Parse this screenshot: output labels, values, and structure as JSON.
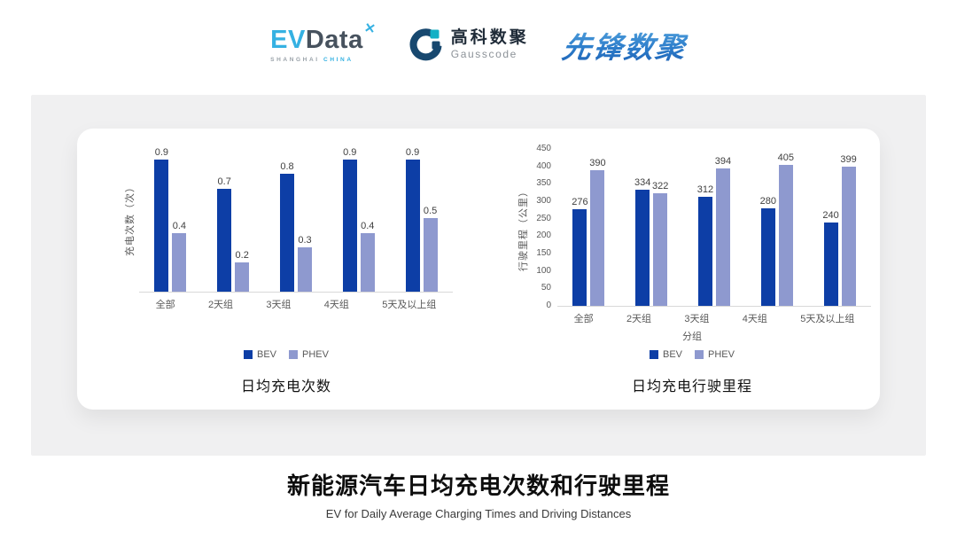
{
  "header": {
    "evdata": {
      "ev": "EV",
      "data": "Data",
      "mark": "✕",
      "sub_left": "SHANGHAI",
      "sub_right": "CHINA"
    },
    "gausscode": {
      "cn": "高科数聚",
      "en": "Gausscode"
    },
    "xianfeng": {
      "text": "先锋数聚"
    }
  },
  "colors": {
    "BEV": "#0d3ea6",
    "PHEV": "#8e99cf",
    "axis_line": "#d8d8d8",
    "tick_text": "#595959",
    "panel_bg": "#f0f0f1",
    "card_bg": "#ffffff",
    "logo_cyan": "#35b1e2",
    "logo_navy": "#17486f",
    "logo_teal": "#13b0c5"
  },
  "chart_data": [
    {
      "type": "bar",
      "title": "日均充电次数",
      "ylabel": "充电次数（次）",
      "xlabel": "",
      "categories": [
        "全部",
        "2天组",
        "3天组",
        "4天组",
        "5天及以上组"
      ],
      "series": [
        {
          "name": "BEV",
          "values": [
            0.9,
            0.7,
            0.8,
            0.9,
            0.9
          ],
          "labels": [
            "0.9",
            "0.7",
            "0.8",
            "0.9",
            "0.9"
          ]
        },
        {
          "name": "PHEV",
          "values": [
            0.4,
            0.2,
            0.3,
            0.4,
            0.5
          ],
          "labels": [
            "0.4",
            "0.2",
            "0.3",
            "0.4",
            "0.5"
          ]
        }
      ],
      "ylim": [
        0,
        1.0
      ],
      "yticks": [],
      "grid": false,
      "legend_position": "bottom"
    },
    {
      "type": "bar",
      "title": "日均充电行驶里程",
      "ylabel": "行驶里程（公里）",
      "xlabel": "分组",
      "categories": [
        "全部",
        "2天组",
        "3天组",
        "4天组",
        "5天及以上组"
      ],
      "series": [
        {
          "name": "BEV",
          "values": [
            276,
            334,
            312,
            280,
            240
          ],
          "labels": [
            "276",
            "334",
            "312",
            "280",
            "240"
          ]
        },
        {
          "name": "PHEV",
          "values": [
            390,
            322,
            394,
            405,
            399
          ],
          "labels": [
            "390",
            "322",
            "394",
            "405",
            "399"
          ]
        }
      ],
      "ylim": [
        0,
        450
      ],
      "yticks": [
        0,
        50,
        100,
        150,
        200,
        250,
        300,
        350,
        400,
        450
      ],
      "grid": false,
      "legend_position": "bottom"
    }
  ],
  "footer": {
    "title": "新能源汽车日均充电次数和行驶里程",
    "subtitle": "EV for Daily Average Charging Times and Driving Distances"
  }
}
